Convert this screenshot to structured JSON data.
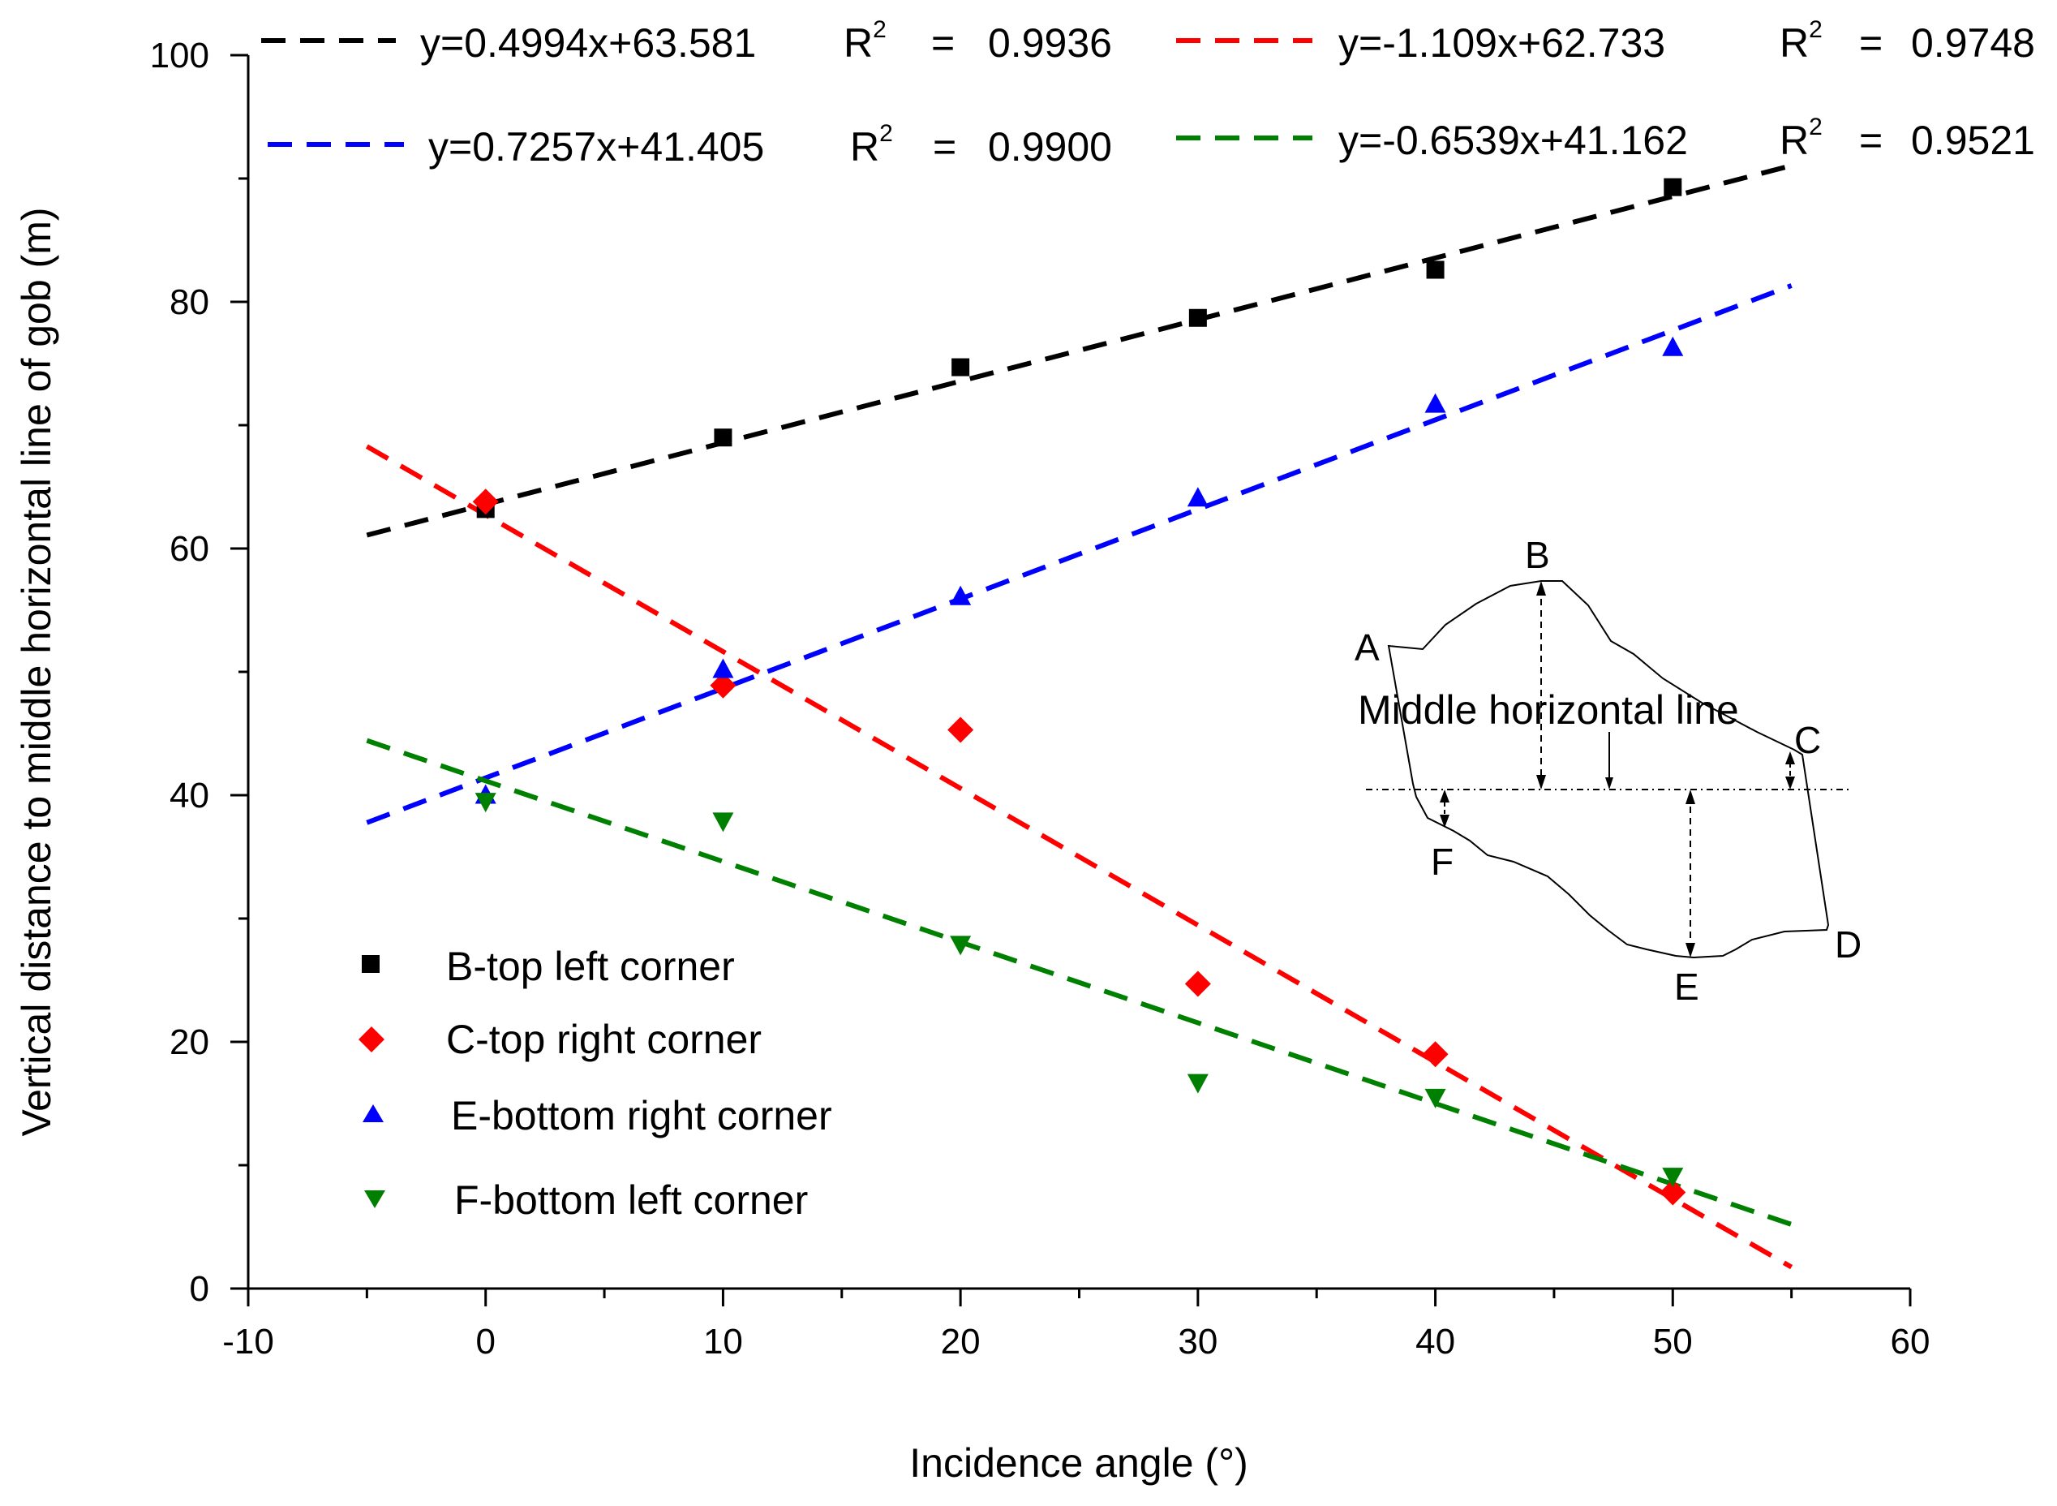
{
  "chart_data": {
    "type": "scatter",
    "xlabel": "Incidence angle (°)",
    "ylabel": "Vertical distance to middle horizontal line of gob (m)",
    "xlim": [
      -10,
      60
    ],
    "ylim": [
      0,
      100
    ],
    "xticks": [
      -10,
      0,
      10,
      20,
      30,
      40,
      50,
      60
    ],
    "yticks": [
      0,
      20,
      40,
      60,
      80,
      100
    ],
    "x": [
      0,
      10,
      20,
      30,
      40,
      50
    ],
    "series": [
      {
        "id": "b",
        "name": "B-top left corner",
        "marker": "square",
        "color": "#000000",
        "values": [
          63.2,
          69.0,
          74.7,
          78.7,
          82.6,
          89.3
        ],
        "fit": {
          "slope": 0.4994,
          "intercept": 63.581,
          "x_range": [
            -5,
            55
          ],
          "equation": "y=0.4994x+63.581",
          "r2": "0.9936"
        }
      },
      {
        "id": "c",
        "name": "C-top right corner",
        "marker": "diamond",
        "color": "#ff0000",
        "values": [
          63.8,
          48.9,
          45.3,
          24.7,
          19.0,
          7.8
        ],
        "fit": {
          "slope": -1.109,
          "intercept": 62.733,
          "x_range": [
            -5,
            55
          ],
          "equation": "y=-1.109x+62.733",
          "r2": "0.9748"
        }
      },
      {
        "id": "e",
        "name": "E-bottom right corner",
        "marker": "triangle-up",
        "color": "#0000ff",
        "values": [
          39.9,
          50.1,
          56.0,
          64.0,
          71.6,
          76.2
        ],
        "fit": {
          "slope": 0.7257,
          "intercept": 41.405,
          "x_range": [
            -5,
            55
          ],
          "equation": "y=0.7257x+41.405",
          "r2": "0.9900"
        }
      },
      {
        "id": "f",
        "name": "F-bottom left corner",
        "marker": "triangle-down",
        "color": "#008000",
        "values": [
          39.6,
          38.0,
          28.0,
          16.8,
          15.6,
          9.2
        ],
        "fit": {
          "slope": -0.6539,
          "intercept": 41.162,
          "x_range": [
            -5,
            55
          ],
          "equation": "y=-0.6539x+41.162",
          "r2": "0.9521"
        }
      }
    ],
    "r2_symbol": "R",
    "r2_superscript": "2",
    "r2_equals": "=",
    "legend_position": "lower-left",
    "grid": false,
    "inset": {
      "title": "Middle horizontal line",
      "points": [
        "A",
        "B",
        "C",
        "D",
        "E",
        "F"
      ]
    }
  }
}
